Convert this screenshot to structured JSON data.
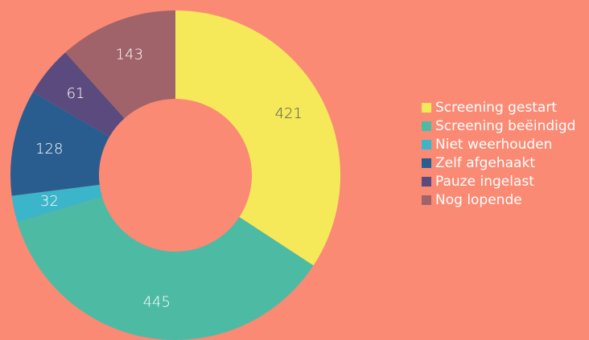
{
  "chart_data": {
    "type": "donut",
    "categories": [
      "Screening gestart",
      "Screening beëindigd",
      "Niet weerhouden",
      "Zelf afgehaakt",
      "Pauze ingelast",
      "Nog lopende"
    ],
    "values": [
      421,
      445,
      32,
      128,
      61,
      143
    ],
    "colors": [
      "#f5e95a",
      "#4dbba3",
      "#3bb5c9",
      "#2a5d8f",
      "#5b4a7e",
      "#a0636a"
    ],
    "label_colors": [
      "#555555",
      "#ffffff",
      "#ffffff",
      "#ffffff",
      "#ffffff",
      "#ffffff"
    ],
    "legend": "right"
  }
}
